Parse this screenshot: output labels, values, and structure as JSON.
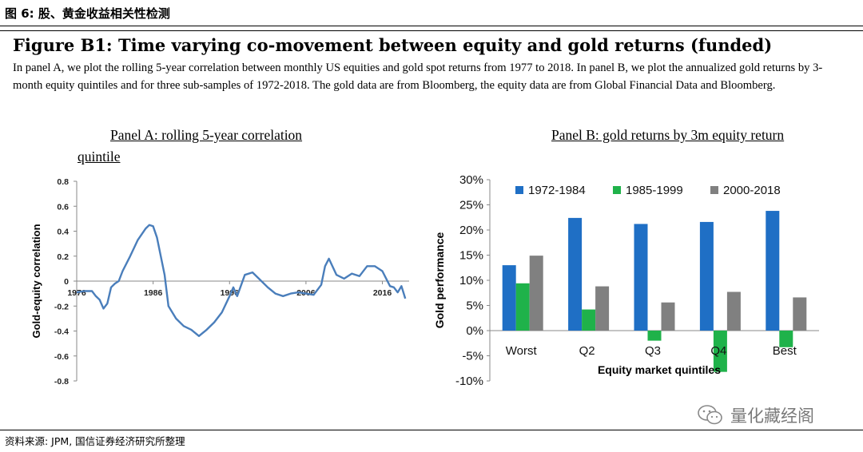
{
  "header": {
    "title": "图 6: 股、黄金收益相关性检测"
  },
  "figure": {
    "title": "Figure B1: Time varying co-movement between equity and gold returns (funded)",
    "caption": "In panel A, we plot the rolling 5-year correlation between monthly US equities and gold spot returns from 1977 to 2018. In panel B, we plot the annualized gold returns by 3-month equity quintiles and for three sub-samples of 1972-2018. The gold data are from Bloomberg, the equity data are from Global Financial Data and Bloomberg."
  },
  "panel_a": {
    "title_line1": "Panel A: rolling 5-year correlation",
    "title_line2": "quintile"
  },
  "panel_b": {
    "title": "Panel B: gold returns by 3m equity return"
  },
  "source": "资料来源: JPM, 国信证券经济研究所整理",
  "watermark": {
    "text": "量化藏经阁",
    "icon": "wechat-icon"
  },
  "colors": {
    "line": "#4a7ebb",
    "s1": "#1f6fc5",
    "s2": "#1fb24a",
    "s3": "#808080"
  },
  "chart_data": [
    {
      "type": "line",
      "title": "Panel A: rolling 5-year correlation",
      "ylabel": "Gold-equity correlation",
      "xlabel": "",
      "ylim": [
        -0.8,
        0.8
      ],
      "yticks": [
        "0.8",
        "0.6",
        "0.4",
        "0.2",
        "0",
        "-0.2",
        "-0.4",
        "-0.6",
        "-0.8"
      ],
      "xticks": [
        "1976",
        "1986",
        "1996",
        "2006",
        "2016"
      ],
      "xlim": [
        1976,
        2019.5
      ],
      "x": [
        1976,
        1977,
        1978,
        1978.5,
        1979,
        1979.5,
        1980,
        1980.5,
        1981,
        1981.5,
        1982,
        1983,
        1984,
        1985,
        1985.5,
        1986,
        1986.5,
        1987,
        1987.5,
        1988,
        1989,
        1990,
        1991,
        1992,
        1993,
        1994,
        1995,
        1996,
        1996.5,
        1997,
        1998,
        1999,
        2000,
        2001,
        2002,
        2003,
        2004,
        2005,
        2006,
        2007,
        2008,
        2008.5,
        2009,
        2010,
        2011,
        2012,
        2013,
        2014,
        2015,
        2016,
        2016.5,
        2017,
        2017.5,
        2018,
        2018.5,
        2019
      ],
      "y": [
        -0.09,
        -0.08,
        -0.08,
        -0.12,
        -0.15,
        -0.22,
        -0.18,
        -0.05,
        -0.02,
        0.0,
        0.08,
        0.2,
        0.33,
        0.42,
        0.45,
        0.44,
        0.35,
        0.2,
        0.05,
        -0.2,
        -0.3,
        -0.36,
        -0.39,
        -0.44,
        -0.39,
        -0.33,
        -0.25,
        -0.12,
        -0.05,
        -0.12,
        0.05,
        0.07,
        0.01,
        -0.05,
        -0.1,
        -0.12,
        -0.1,
        -0.09,
        -0.1,
        -0.11,
        -0.03,
        0.12,
        0.18,
        0.05,
        0.02,
        0.06,
        0.04,
        0.12,
        0.12,
        0.08,
        0.02,
        -0.04,
        -0.05,
        -0.09,
        -0.04,
        -0.14
      ]
    },
    {
      "type": "bar",
      "title": "Panel B: gold returns by 3m equity return",
      "xlabel": "Equity market quintiles",
      "ylabel": "Gold performance",
      "ylim": [
        -10,
        30
      ],
      "yticks": [
        "30%",
        "25%",
        "20%",
        "15%",
        "10%",
        "5%",
        "0%",
        "-5%",
        "-10%"
      ],
      "categories": [
        "Worst",
        "Q2",
        "Q3",
        "Q4",
        "Best"
      ],
      "series": [
        {
          "name": "1972-1984",
          "values": [
            13.0,
            22.4,
            21.2,
            21.6,
            23.8
          ]
        },
        {
          "name": "1985-1999",
          "values": [
            9.4,
            4.2,
            -2.0,
            -8.2,
            -3.3
          ]
        },
        {
          "name": "2000-2018",
          "values": [
            14.9,
            8.8,
            5.6,
            7.7,
            6.6
          ]
        }
      ]
    }
  ]
}
